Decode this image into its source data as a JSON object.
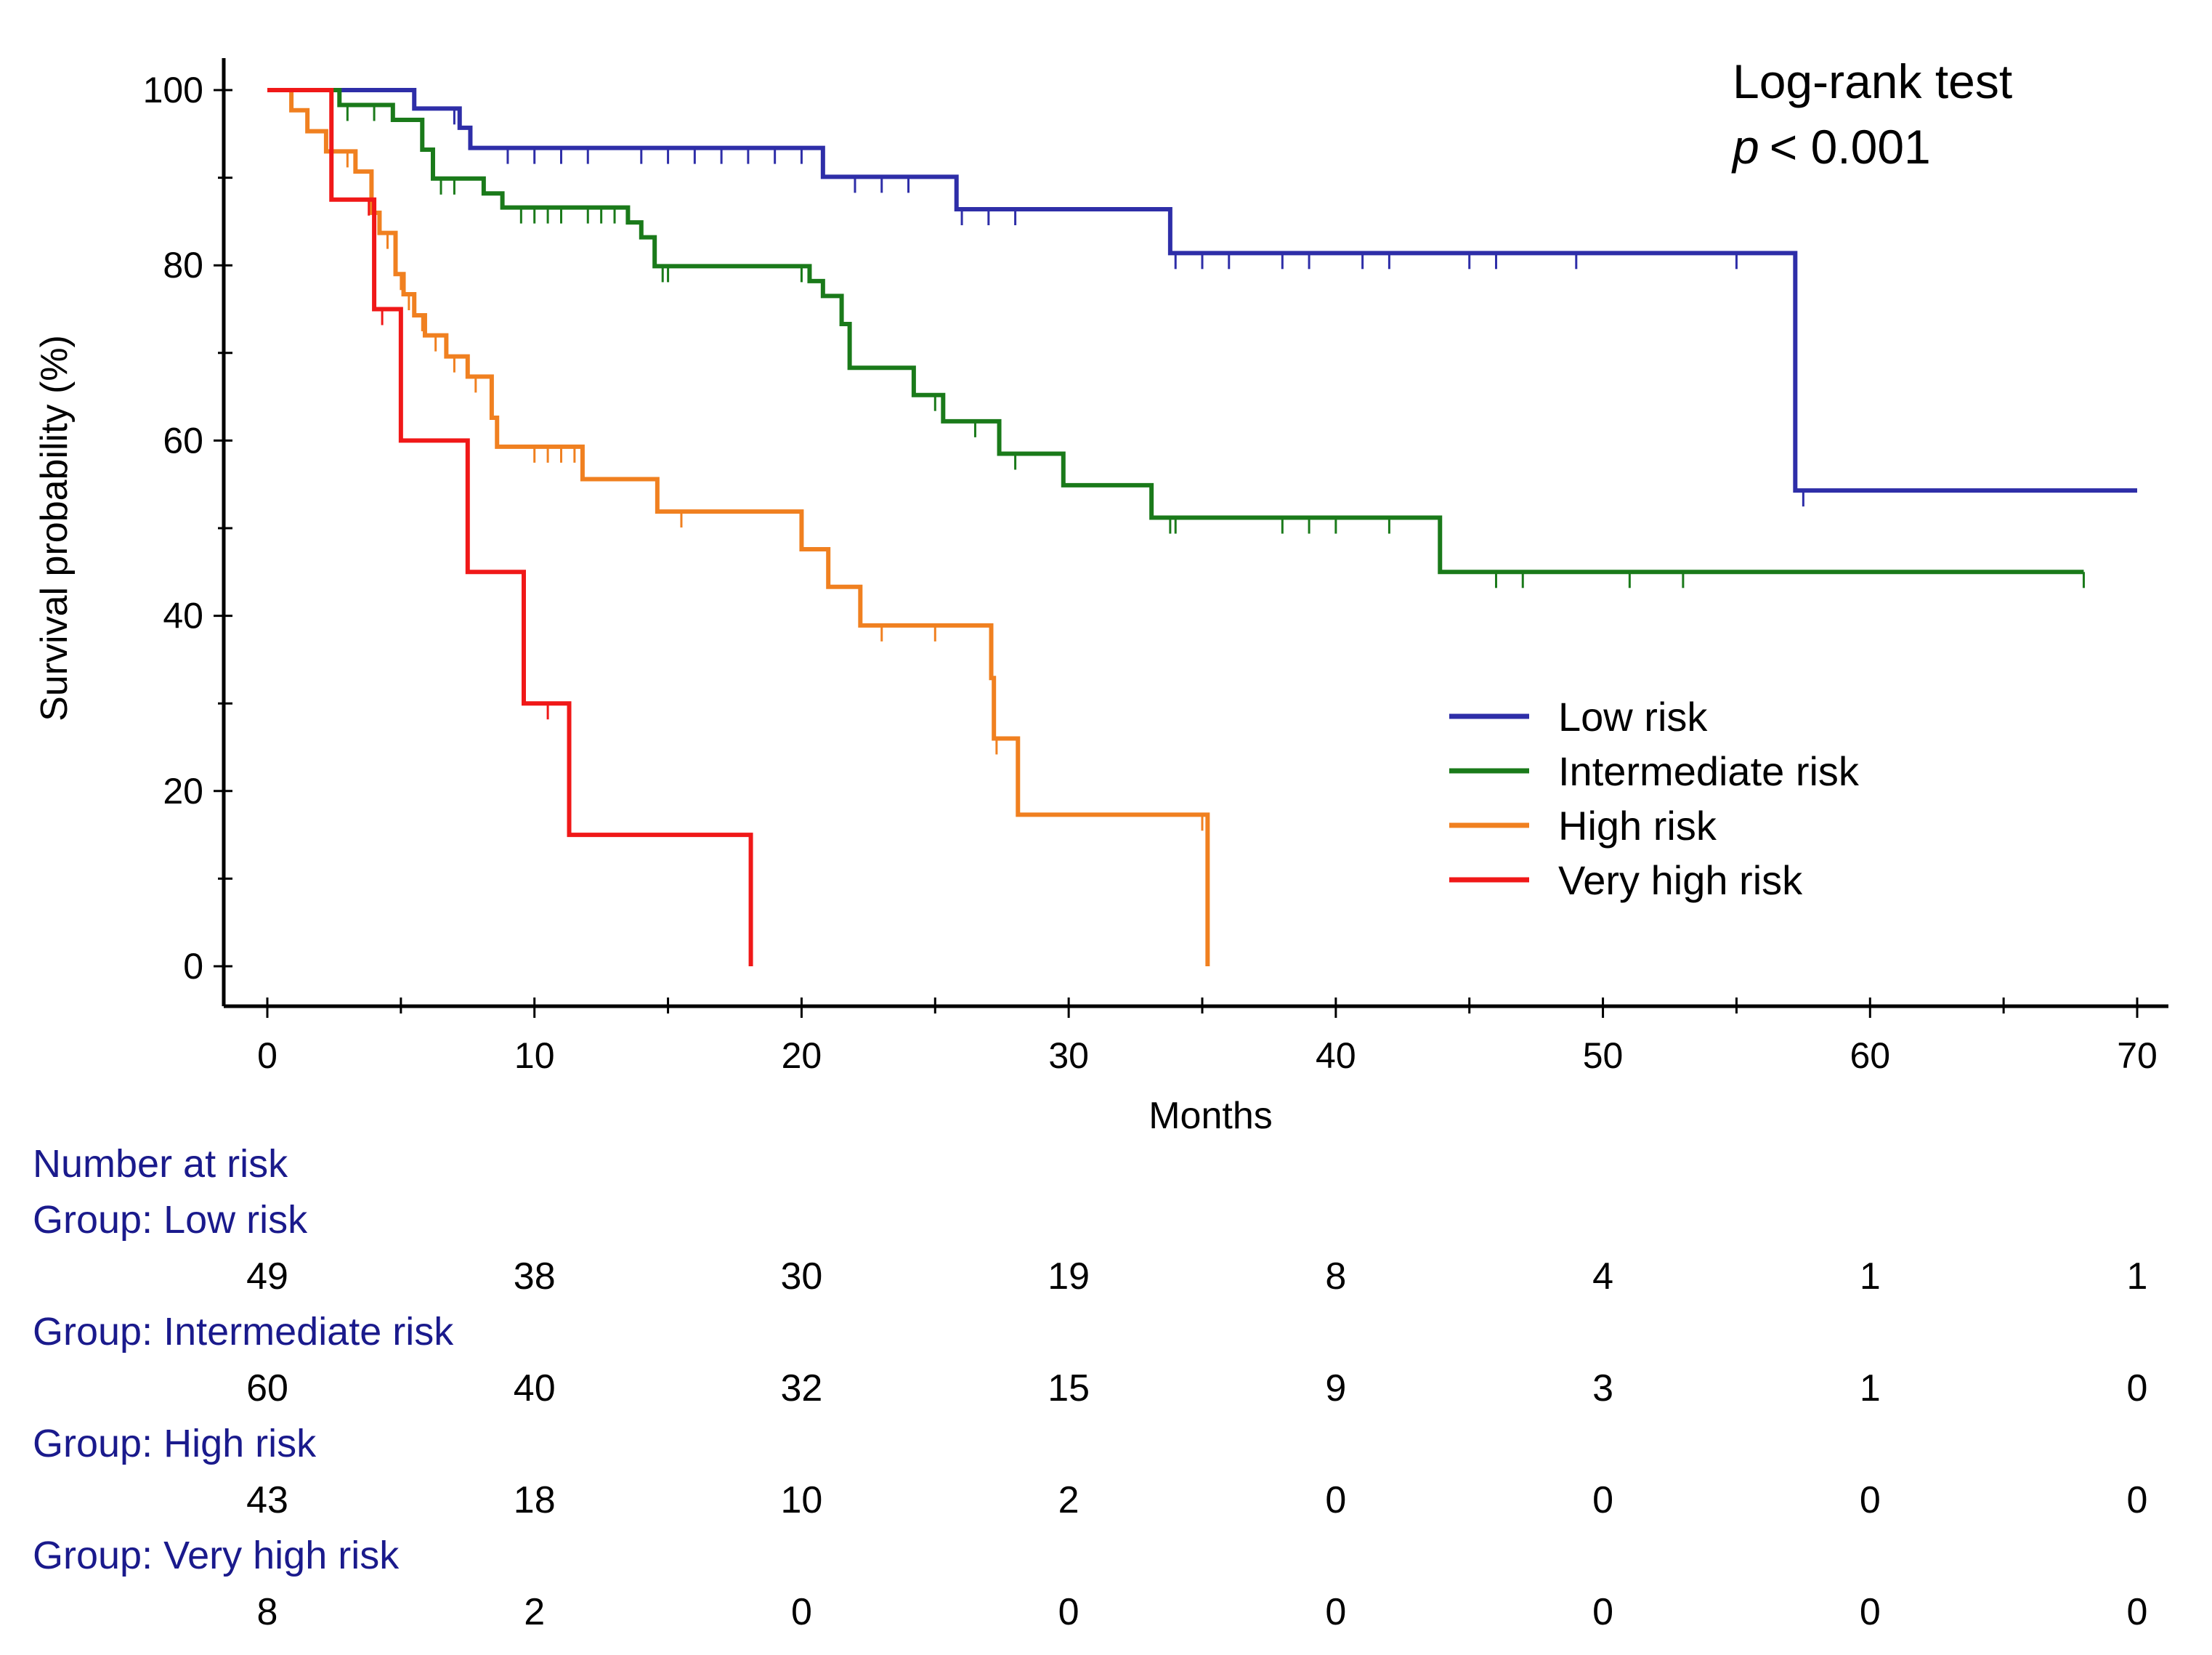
{
  "chart_data": {
    "type": "line",
    "subtype": "kaplan-meier",
    "title": "",
    "xlabel": "Months",
    "ylabel": "Survival probability (%)",
    "xlim": [
      0,
      70
    ],
    "ylim": [
      0,
      100
    ],
    "x_ticks": [
      0,
      10,
      20,
      30,
      40,
      50,
      60,
      70
    ],
    "y_ticks": [
      0,
      20,
      40,
      60,
      80,
      100
    ],
    "grid": false,
    "legend_position": "center-right",
    "annotation": {
      "line1": "Log-rank test",
      "p_symbol": "p",
      "p_value": "< 0.001"
    },
    "series": [
      {
        "name": "Low risk",
        "color": "#2e2ea8",
        "steps": [
          [
            0,
            100
          ],
          [
            5.5,
            97.9
          ],
          [
            7.2,
            95.7
          ],
          [
            7.6,
            93.4
          ],
          [
            20.8,
            90.1
          ],
          [
            25.8,
            86.4
          ],
          [
            33.8,
            81.4
          ],
          [
            57.2,
            54.3
          ],
          [
            70,
            54.3
          ]
        ],
        "censor_times": [
          7,
          9,
          10,
          11,
          12,
          14,
          15,
          16,
          17,
          18,
          19,
          20,
          22,
          23,
          24,
          26,
          27,
          28,
          34,
          35,
          36,
          38,
          39,
          41,
          42,
          45,
          46,
          49,
          55,
          57.5
        ]
      },
      {
        "name": "Intermediate risk",
        "color": "#1a7a1a",
        "steps": [
          [
            0,
            100
          ],
          [
            2.7,
            98.3
          ],
          [
            4.7,
            96.6
          ],
          [
            5.8,
            93.2
          ],
          [
            6.2,
            89.9
          ],
          [
            8.1,
            88.2
          ],
          [
            8.8,
            86.6
          ],
          [
            13.5,
            84.9
          ],
          [
            14,
            83.2
          ],
          [
            14.5,
            79.9
          ],
          [
            20.3,
            78.2
          ],
          [
            20.8,
            76.5
          ],
          [
            21.5,
            73.3
          ],
          [
            21.8,
            68.3
          ],
          [
            24.2,
            65.2
          ],
          [
            25.3,
            62.2
          ],
          [
            27.4,
            58.5
          ],
          [
            29.8,
            54.9
          ],
          [
            33.1,
            51.2
          ],
          [
            43.9,
            45
          ],
          [
            68,
            45
          ]
        ],
        "censor_times": [
          3,
          4,
          6.5,
          7,
          9.5,
          10,
          10.5,
          11,
          12,
          12.5,
          13,
          14.8,
          15,
          20,
          25,
          26.5,
          28,
          33.8,
          34,
          38,
          39,
          40,
          42,
          46,
          47,
          51,
          53,
          68
        ]
      },
      {
        "name": "High risk",
        "color": "#f08020",
        "steps": [
          [
            0,
            100
          ],
          [
            0.9,
            97.7
          ],
          [
            1.5,
            95.3
          ],
          [
            2.2,
            93
          ],
          [
            3.3,
            90.7
          ],
          [
            3.9,
            86
          ],
          [
            4.2,
            83.7
          ],
          [
            4.8,
            79
          ],
          [
            5.1,
            76.7
          ],
          [
            5.5,
            74.3
          ],
          [
            5.9,
            72
          ],
          [
            6.7,
            69.6
          ],
          [
            7.5,
            67.3
          ],
          [
            8.4,
            62.6
          ],
          [
            8.6,
            59.3
          ],
          [
            11.8,
            55.6
          ],
          [
            14.6,
            51.9
          ],
          [
            20,
            47.6
          ],
          [
            21,
            43.3
          ],
          [
            22.2,
            38.9
          ],
          [
            27.1,
            32.9
          ],
          [
            27.2,
            26
          ],
          [
            28.1,
            17.3
          ],
          [
            35.2,
            0
          ],
          [
            35.2,
            0
          ]
        ],
        "censor_times": [
          3,
          4.5,
          5,
          5.3,
          5.8,
          6.3,
          7,
          7.8,
          10,
          10.5,
          11,
          11.5,
          15.5,
          23,
          25,
          27.3,
          35
        ]
      },
      {
        "name": "Very high risk",
        "color": "#f01818",
        "steps": [
          [
            0,
            100
          ],
          [
            2.4,
            87.5
          ],
          [
            4,
            75
          ],
          [
            5,
            60
          ],
          [
            7.5,
            45
          ],
          [
            9.6,
            30
          ],
          [
            11.3,
            15
          ],
          [
            18.1,
            0
          ],
          [
            18.1,
            0
          ]
        ],
        "censor_times": [
          3.8,
          4.3,
          10.5
        ]
      }
    ],
    "risk_table": {
      "title": "Number at risk",
      "times": [
        0,
        10,
        20,
        30,
        40,
        50,
        60,
        70
      ],
      "groups": [
        {
          "label": "Group: Low risk",
          "counts": [
            49,
            38,
            30,
            19,
            8,
            4,
            1,
            1
          ]
        },
        {
          "label": "Group: Intermediate risk",
          "counts": [
            60,
            40,
            32,
            15,
            9,
            3,
            1,
            0
          ]
        },
        {
          "label": "Group: High risk",
          "counts": [
            43,
            18,
            10,
            2,
            0,
            0,
            0,
            0
          ]
        },
        {
          "label": "Group: Very high risk",
          "counts": [
            8,
            2,
            0,
            0,
            0,
            0,
            0,
            0
          ]
        }
      ]
    }
  }
}
